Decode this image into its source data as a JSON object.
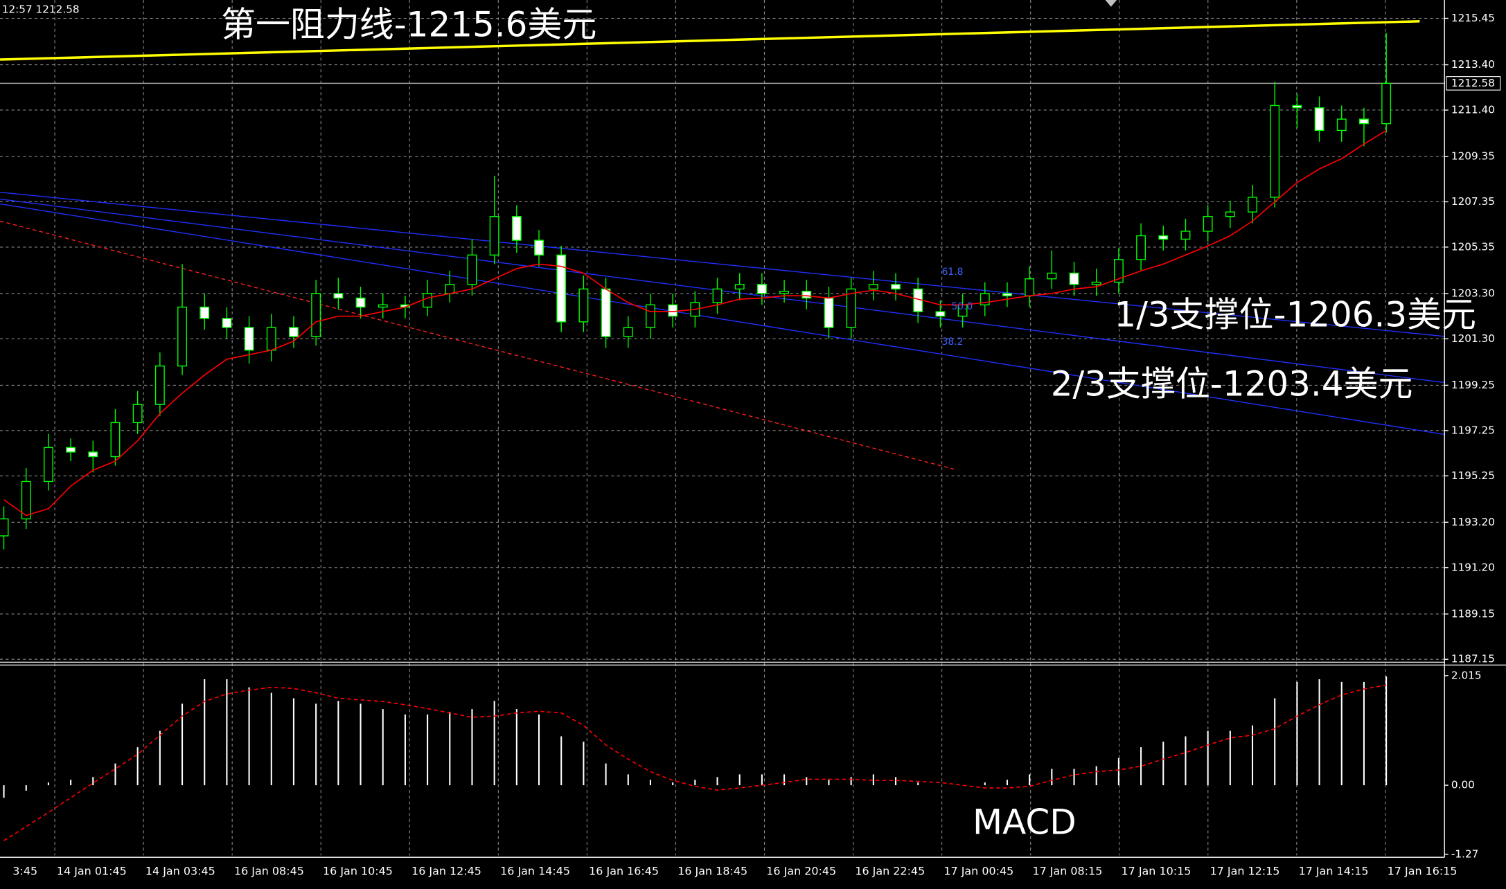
{
  "header": "12:57 1212.58",
  "chart_data": [
    {
      "type": "candlestick",
      "annotations": [
        "第一阻力线-1215.6美元",
        "1/3支撑位-1206.3美元",
        "2/3支撑位-1203.4美元"
      ],
      "fib_labels": [
        "61.8",
        "50.0",
        "38.2"
      ],
      "open": [
        1192.6,
        1193.35,
        1195.0,
        1196.5,
        1196.3,
        1196.1,
        1197.6,
        1198.4,
        1200.1,
        1202.7,
        1202.2,
        1201.8,
        1200.8,
        1201.8,
        1201.4,
        1203.3,
        1203.1,
        1202.7,
        1202.8,
        1202.7,
        1203.3,
        1203.7,
        1205.0,
        1206.7,
        1205.65,
        1205.0,
        1202.05,
        1203.5,
        1201.4,
        1201.8,
        1202.8,
        1202.3,
        1202.9,
        1203.5,
        1203.7,
        1203.3,
        1203.4,
        1203.1,
        1201.8,
        1203.5,
        1203.7,
        1203.5,
        1202.5,
        1202.3,
        1202.8,
        1203.3,
        1203.2,
        1203.95,
        1204.2,
        1203.7,
        1203.8,
        1204.8,
        1205.85,
        1205.7,
        1206.05,
        1206.7,
        1206.9,
        1207.55,
        1211.6,
        1211.5,
        1210.5,
        1211.0,
        1210.8
      ],
      "high": [
        1193.9,
        1195.6,
        1197.1,
        1196.9,
        1196.8,
        1198.2,
        1199.0,
        1200.7,
        1204.6,
        1203.3,
        1202.7,
        1202.3,
        1202.4,
        1202.3,
        1203.9,
        1204.0,
        1203.6,
        1203.3,
        1203.2,
        1203.9,
        1204.3,
        1205.7,
        1208.5,
        1207.2,
        1206.1,
        1205.4,
        1204.1,
        1204.0,
        1202.3,
        1203.3,
        1203.3,
        1203.4,
        1204.0,
        1204.2,
        1204.2,
        1203.9,
        1203.9,
        1203.6,
        1204.0,
        1204.3,
        1204.2,
        1204.0,
        1203.0,
        1203.3,
        1203.8,
        1203.8,
        1204.5,
        1205.2,
        1204.7,
        1204.4,
        1205.3,
        1206.4,
        1206.3,
        1206.6,
        1207.2,
        1207.4,
        1208.1,
        1212.65,
        1212.1,
        1212.0,
        1211.6,
        1211.5,
        1214.8
      ],
      "low": [
        1192.0,
        1192.9,
        1194.6,
        1195.9,
        1195.4,
        1195.7,
        1197.1,
        1197.9,
        1199.7,
        1201.7,
        1201.3,
        1200.2,
        1200.3,
        1200.9,
        1201.0,
        1202.6,
        1202.2,
        1202.2,
        1202.2,
        1202.3,
        1202.9,
        1203.2,
        1204.6,
        1205.1,
        1204.5,
        1201.6,
        1201.6,
        1200.9,
        1200.9,
        1201.3,
        1201.8,
        1201.8,
        1202.4,
        1203.0,
        1202.8,
        1202.9,
        1202.6,
        1201.3,
        1201.3,
        1203.0,
        1203.0,
        1202.0,
        1201.8,
        1201.8,
        1202.3,
        1202.7,
        1202.7,
        1203.5,
        1203.2,
        1203.2,
        1203.3,
        1204.3,
        1205.2,
        1205.2,
        1205.6,
        1206.2,
        1206.4,
        1207.1,
        1210.6,
        1210.0,
        1210.0,
        1209.8,
        1210.4
      ],
      "close": [
        1193.35,
        1195.0,
        1196.5,
        1196.3,
        1196.1,
        1197.6,
        1198.4,
        1200.1,
        1202.7,
        1202.2,
        1201.8,
        1200.8,
        1201.8,
        1201.4,
        1203.3,
        1203.1,
        1202.7,
        1202.8,
        1202.7,
        1203.3,
        1203.7,
        1205.0,
        1206.7,
        1205.65,
        1205.0,
        1202.05,
        1203.5,
        1201.4,
        1201.8,
        1202.8,
        1202.3,
        1202.9,
        1203.5,
        1203.7,
        1203.3,
        1203.4,
        1203.1,
        1201.8,
        1203.5,
        1203.7,
        1203.5,
        1202.5,
        1202.3,
        1202.8,
        1203.3,
        1203.2,
        1203.95,
        1204.2,
        1203.7,
        1203.8,
        1204.8,
        1205.85,
        1205.7,
        1206.05,
        1206.7,
        1206.9,
        1207.55,
        1211.6,
        1211.5,
        1210.5,
        1211.0,
        1210.8,
        1212.58
      ],
      "bull_color": "#000000",
      "bear_color": "#ffffff",
      "wick_color": "#00ff00",
      "ma": {
        "color": "#ff0000",
        "values": [
          1194.2,
          1193.5,
          1193.8,
          1194.8,
          1195.5,
          1195.9,
          1196.8,
          1198.0,
          1198.9,
          1199.7,
          1200.4,
          1200.6,
          1200.8,
          1201.2,
          1202.05,
          1202.3,
          1202.3,
          1202.5,
          1202.7,
          1203.1,
          1203.3,
          1203.5,
          1203.95,
          1204.4,
          1204.6,
          1204.5,
          1204.2,
          1203.5,
          1202.9,
          1202.5,
          1202.5,
          1202.6,
          1202.8,
          1203.05,
          1203.1,
          1203.2,
          1203.2,
          1203.1,
          1203.3,
          1203.45,
          1203.3,
          1203.05,
          1202.8,
          1202.8,
          1202.9,
          1203.05,
          1203.2,
          1203.3,
          1203.5,
          1203.6,
          1203.95,
          1204.3,
          1204.6,
          1205.0,
          1205.4,
          1205.85,
          1206.5,
          1207.35,
          1208.2,
          1208.8,
          1209.25,
          1209.9,
          1210.5
        ]
      },
      "trendlines": [
        {
          "color": "#ffff00",
          "x": [
            -0.17,
            63.5
          ],
          "values": [
            1213.63,
            1215.32
          ]
        },
        {
          "color": "#2030ff",
          "x": [
            -0.17,
            64.6
          ],
          "values": [
            1207.77,
            1201.41
          ]
        },
        {
          "color": "#2030ff",
          "x": [
            -0.17,
            64.6
          ],
          "values": [
            1207.47,
            1199.37
          ]
        },
        {
          "color": "#2030ff",
          "x": [
            -0.17,
            64.6
          ],
          "values": [
            1207.26,
            1197.08
          ]
        },
        {
          "color": "#ff2020",
          "x": [
            -0.17,
            42.6
          ],
          "values": [
            1206.5,
            1195.55
          ],
          "dashed": true
        }
      ],
      "current_price": 1212.58,
      "ylim": [
        1186.98,
        1216.26
      ],
      "yticks": [
        1215.45,
        {
          "value": 1213.4,
          "label": "1213.40"
        },
        {
          "value": 1211.4,
          "label": "1211.40"
        },
        1209.35,
        1207.35,
        1205.35,
        {
          "value": 1203.3,
          "label": "1203.30"
        },
        {
          "value": 1201.3,
          "label": "1201.30"
        },
        1199.25,
        1197.25,
        1195.25,
        {
          "value": 1193.2,
          "label": "1193.20"
        },
        {
          "value": 1191.2,
          "label": "1191.20"
        },
        1189.15,
        1187.15
      ],
      "grid": true,
      "x_labels": [
        "3:45",
        "14 Jan 01:45",
        "14 Jan 03:45",
        "16 Jan 08:45",
        "16 Jan 10:45",
        "16 Jan 12:45",
        "16 Jan 14:45",
        "16 Jan 16:45",
        "16 Jan 18:45",
        "16 Jan 20:45",
        "16 Jan 22:45",
        "17 Jan 00:45",
        "17 Jan 08:15",
        "17 Jan 10:15",
        "17 Jan 12:15",
        "17 Jan 14:15",
        "17 Jan 16:15"
      ]
    },
    {
      "type": "macd",
      "name": "MACD",
      "color": "#ffffff",
      "values": [
        -0.23,
        -0.1,
        0.05,
        0.1,
        0.15,
        0.4,
        0.7,
        1.0,
        1.5,
        1.95,
        1.95,
        1.8,
        1.7,
        1.6,
        1.5,
        1.55,
        1.5,
        1.4,
        1.3,
        1.3,
        1.35,
        1.4,
        1.55,
        1.4,
        1.3,
        0.9,
        0.8,
        0.4,
        0.2,
        0.1,
        0.05,
        0.1,
        0.15,
        0.2,
        0.2,
        0.2,
        0.15,
        0.1,
        0.15,
        0.2,
        0.15,
        0.05,
        0.0,
        0.0,
        0.05,
        0.1,
        0.2,
        0.3,
        0.3,
        0.35,
        0.5,
        0.7,
        0.8,
        0.9,
        1.0,
        1.0,
        1.1,
        1.6,
        1.9,
        1.95,
        1.9,
        1.9,
        2.0
      ],
      "signal": {
        "color": "#ff0000",
        "values": [
          -1.02,
          -0.76,
          -0.5,
          -0.23,
          0.04,
          0.3,
          0.57,
          0.92,
          1.27,
          1.54,
          1.68,
          1.75,
          1.8,
          1.78,
          1.7,
          1.6,
          1.57,
          1.54,
          1.48,
          1.41,
          1.33,
          1.25,
          1.27,
          1.33,
          1.36,
          1.33,
          1.1,
          0.74,
          0.48,
          0.25,
          0.09,
          -0.02,
          -0.09,
          -0.05,
          0,
          0.05,
          0.11,
          0.11,
          0.11,
          0.09,
          0.09,
          0.07,
          0.05,
          0,
          -0.05,
          -0.05,
          -0.02,
          0.09,
          0.19,
          0.25,
          0.28,
          0.35,
          0.48,
          0.6,
          0.74,
          0.87,
          0.92,
          1.04,
          1.27,
          1.48,
          1.66,
          1.77,
          1.84
        ]
      },
      "ylim": [
        -1.29,
        2.21
      ],
      "yticks": [
        2.015,
        {
          "value": 0,
          "label": "0.00"
        },
        -1.27
      ]
    }
  ]
}
